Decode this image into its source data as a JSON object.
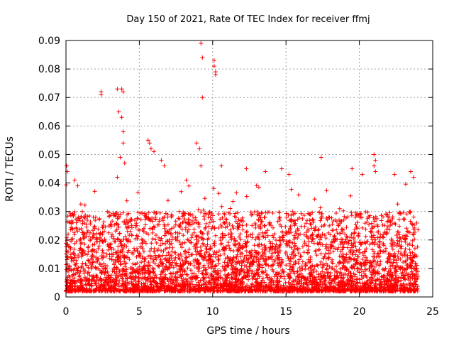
{
  "chart_data": {
    "type": "scatter",
    "title": "Day 150 of 2021, Rate Of TEC Index for receiver ffmj",
    "xlabel": "GPS time / hours",
    "ylabel": "ROTI / TECUs",
    "xlim": [
      0,
      25
    ],
    "ylim": [
      0,
      0.09
    ],
    "xticks": [
      0,
      5,
      10,
      15,
      20,
      25
    ],
    "xtick_labels": [
      "0",
      "5",
      "10",
      "15",
      "20",
      "25"
    ],
    "yticks": [
      0,
      0.01,
      0.02,
      0.03,
      0.04,
      0.05,
      0.06,
      0.07,
      0.08,
      0.09
    ],
    "ytick_labels": [
      "0",
      "0.01",
      "0.02",
      "0.03",
      "0.04",
      "0.05",
      "0.06",
      "0.07",
      "0.08",
      "0.09"
    ],
    "grid": true,
    "marker": "+",
    "series": [
      {
        "name": "ROTI",
        "color": "#ff0000",
        "description": "dense cloud of samples over 0–24 h, mostly 0.002–0.03 TECU/min",
        "bulk_range": [
          0.002,
          0.03
        ],
        "outliers": [
          {
            "x": 0.05,
            "y": 0.046
          },
          {
            "x": 0.1,
            "y": 0.044
          },
          {
            "x": 0.6,
            "y": 0.041
          },
          {
            "x": 0.8,
            "y": 0.039
          },
          {
            "x": 2.4,
            "y": 0.072
          },
          {
            "x": 2.4,
            "y": 0.071
          },
          {
            "x": 3.5,
            "y": 0.073
          },
          {
            "x": 3.6,
            "y": 0.065
          },
          {
            "x": 3.8,
            "y": 0.073
          },
          {
            "x": 3.9,
            "y": 0.072
          },
          {
            "x": 3.8,
            "y": 0.063
          },
          {
            "x": 3.9,
            "y": 0.058
          },
          {
            "x": 3.9,
            "y": 0.054
          },
          {
            "x": 3.7,
            "y": 0.049
          },
          {
            "x": 4.0,
            "y": 0.047
          },
          {
            "x": 3.5,
            "y": 0.042
          },
          {
            "x": 5.6,
            "y": 0.055
          },
          {
            "x": 5.7,
            "y": 0.054
          },
          {
            "x": 5.8,
            "y": 0.052
          },
          {
            "x": 6.0,
            "y": 0.051
          },
          {
            "x": 6.5,
            "y": 0.048
          },
          {
            "x": 6.7,
            "y": 0.046
          },
          {
            "x": 8.2,
            "y": 0.041
          },
          {
            "x": 8.9,
            "y": 0.054
          },
          {
            "x": 9.1,
            "y": 0.052
          },
          {
            "x": 9.2,
            "y": 0.046
          },
          {
            "x": 9.2,
            "y": 0.089
          },
          {
            "x": 9.3,
            "y": 0.084
          },
          {
            "x": 9.3,
            "y": 0.07
          },
          {
            "x": 10.1,
            "y": 0.083
          },
          {
            "x": 10.1,
            "y": 0.081
          },
          {
            "x": 10.2,
            "y": 0.079
          },
          {
            "x": 10.2,
            "y": 0.078
          },
          {
            "x": 10.6,
            "y": 0.046
          },
          {
            "x": 12.3,
            "y": 0.045
          },
          {
            "x": 13.6,
            "y": 0.044
          },
          {
            "x": 14.7,
            "y": 0.045
          },
          {
            "x": 15.2,
            "y": 0.043
          },
          {
            "x": 17.4,
            "y": 0.049
          },
          {
            "x": 19.5,
            "y": 0.045
          },
          {
            "x": 20.2,
            "y": 0.043
          },
          {
            "x": 21.0,
            "y": 0.05
          },
          {
            "x": 21.1,
            "y": 0.048
          },
          {
            "x": 21.0,
            "y": 0.046
          },
          {
            "x": 21.1,
            "y": 0.044
          },
          {
            "x": 22.4,
            "y": 0.043
          },
          {
            "x": 23.5,
            "y": 0.044
          },
          {
            "x": 23.7,
            "y": 0.042
          }
        ]
      }
    ]
  }
}
